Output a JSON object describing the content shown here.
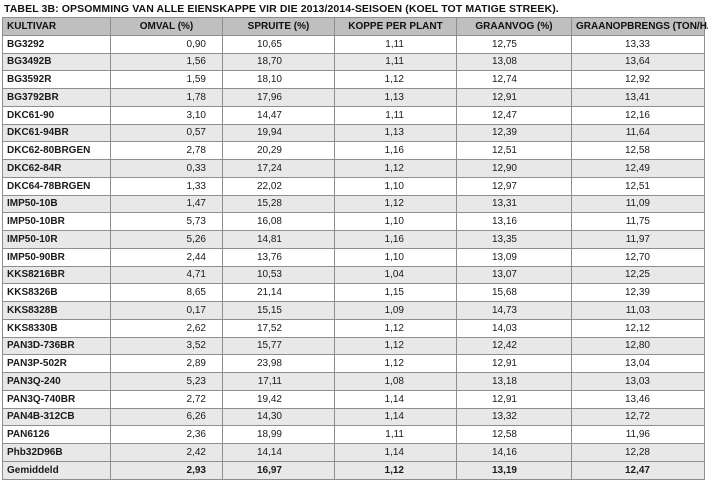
{
  "caption": "TABEL 3B: OPSOMMING VAN ALLE EIENSKAPPE VIR DIE 2013/2014-SEISOEN (KOEL TOT MATIGE STREEK).",
  "headers": [
    "KULTIVAR",
    "OMVAL (%)",
    "SPRUITE (%)",
    "KOPPE PER PLANT",
    "GRAANVOG (%)",
    "GRAANOPBRENGS (TON/HA)"
  ],
  "rows": [
    [
      "BG3292",
      "0,90",
      "10,65",
      "1,11",
      "12,75",
      "13,33"
    ],
    [
      "BG3492B",
      "1,56",
      "18,70",
      "1,11",
      "13,08",
      "13,64"
    ],
    [
      "BG3592R",
      "1,59",
      "18,10",
      "1,12",
      "12,74",
      "12,92"
    ],
    [
      "BG3792BR",
      "1,78",
      "17,96",
      "1,13",
      "12,91",
      "13,41"
    ],
    [
      "DKC61-90",
      "3,10",
      "14,47",
      "1,11",
      "12,47",
      "12,16"
    ],
    [
      "DKC61-94BR",
      "0,57",
      "19,94",
      "1,13",
      "12,39",
      "11,64"
    ],
    [
      "DKC62-80BRGEN",
      "2,78",
      "20,29",
      "1,16",
      "12,51",
      "12,58"
    ],
    [
      "DKC62-84R",
      "0,33",
      "17,24",
      "1,12",
      "12,90",
      "12,49"
    ],
    [
      "DKC64-78BRGEN",
      "1,33",
      "22,02",
      "1,10",
      "12,97",
      "12,51"
    ],
    [
      "IMP50-10B",
      "1,47",
      "15,28",
      "1,12",
      "13,31",
      "11,09"
    ],
    [
      "IMP50-10BR",
      "5,73",
      "16,08",
      "1,10",
      "13,16",
      "11,75"
    ],
    [
      "IMP50-10R",
      "5,26",
      "14,81",
      "1,16",
      "13,35",
      "11,97"
    ],
    [
      "IMP50-90BR",
      "2,44",
      "13,76",
      "1,10",
      "13,09",
      "12,70"
    ],
    [
      "KKS8216BR",
      "4,71",
      "10,53",
      "1,04",
      "13,07",
      "12,25"
    ],
    [
      "KKS8326B",
      "8,65",
      "21,14",
      "1,15",
      "15,68",
      "12,39"
    ],
    [
      "KKS8328B",
      "0,17",
      "15,15",
      "1,09",
      "14,73",
      "11,03"
    ],
    [
      "KKS8330B",
      "2,62",
      "17,52",
      "1,12",
      "14,03",
      "12,12"
    ],
    [
      "PAN3D-736BR",
      "3,52",
      "15,77",
      "1,12",
      "12,42",
      "12,80"
    ],
    [
      "PAN3P-502R",
      "2,89",
      "23,98",
      "1,12",
      "12,91",
      "13,04"
    ],
    [
      "PAN3Q-240",
      "5,23",
      "17,11",
      "1,08",
      "13,18",
      "13,03"
    ],
    [
      "PAN3Q-740BR",
      "2,72",
      "19,42",
      "1,14",
      "12,91",
      "13,46"
    ],
    [
      "PAN4B-312CB",
      "6,26",
      "14,30",
      "1,14",
      "13,32",
      "12,72"
    ],
    [
      "PAN6126",
      "2,36",
      "18,99",
      "1,11",
      "12,58",
      "11,96"
    ],
    [
      "Phb32D96B",
      "2,42",
      "14,14",
      "1,14",
      "14,16",
      "12,28"
    ]
  ],
  "footer": [
    "Gemiddeld",
    "2,93",
    "16,97",
    "1,12",
    "13,19",
    "12,47"
  ]
}
